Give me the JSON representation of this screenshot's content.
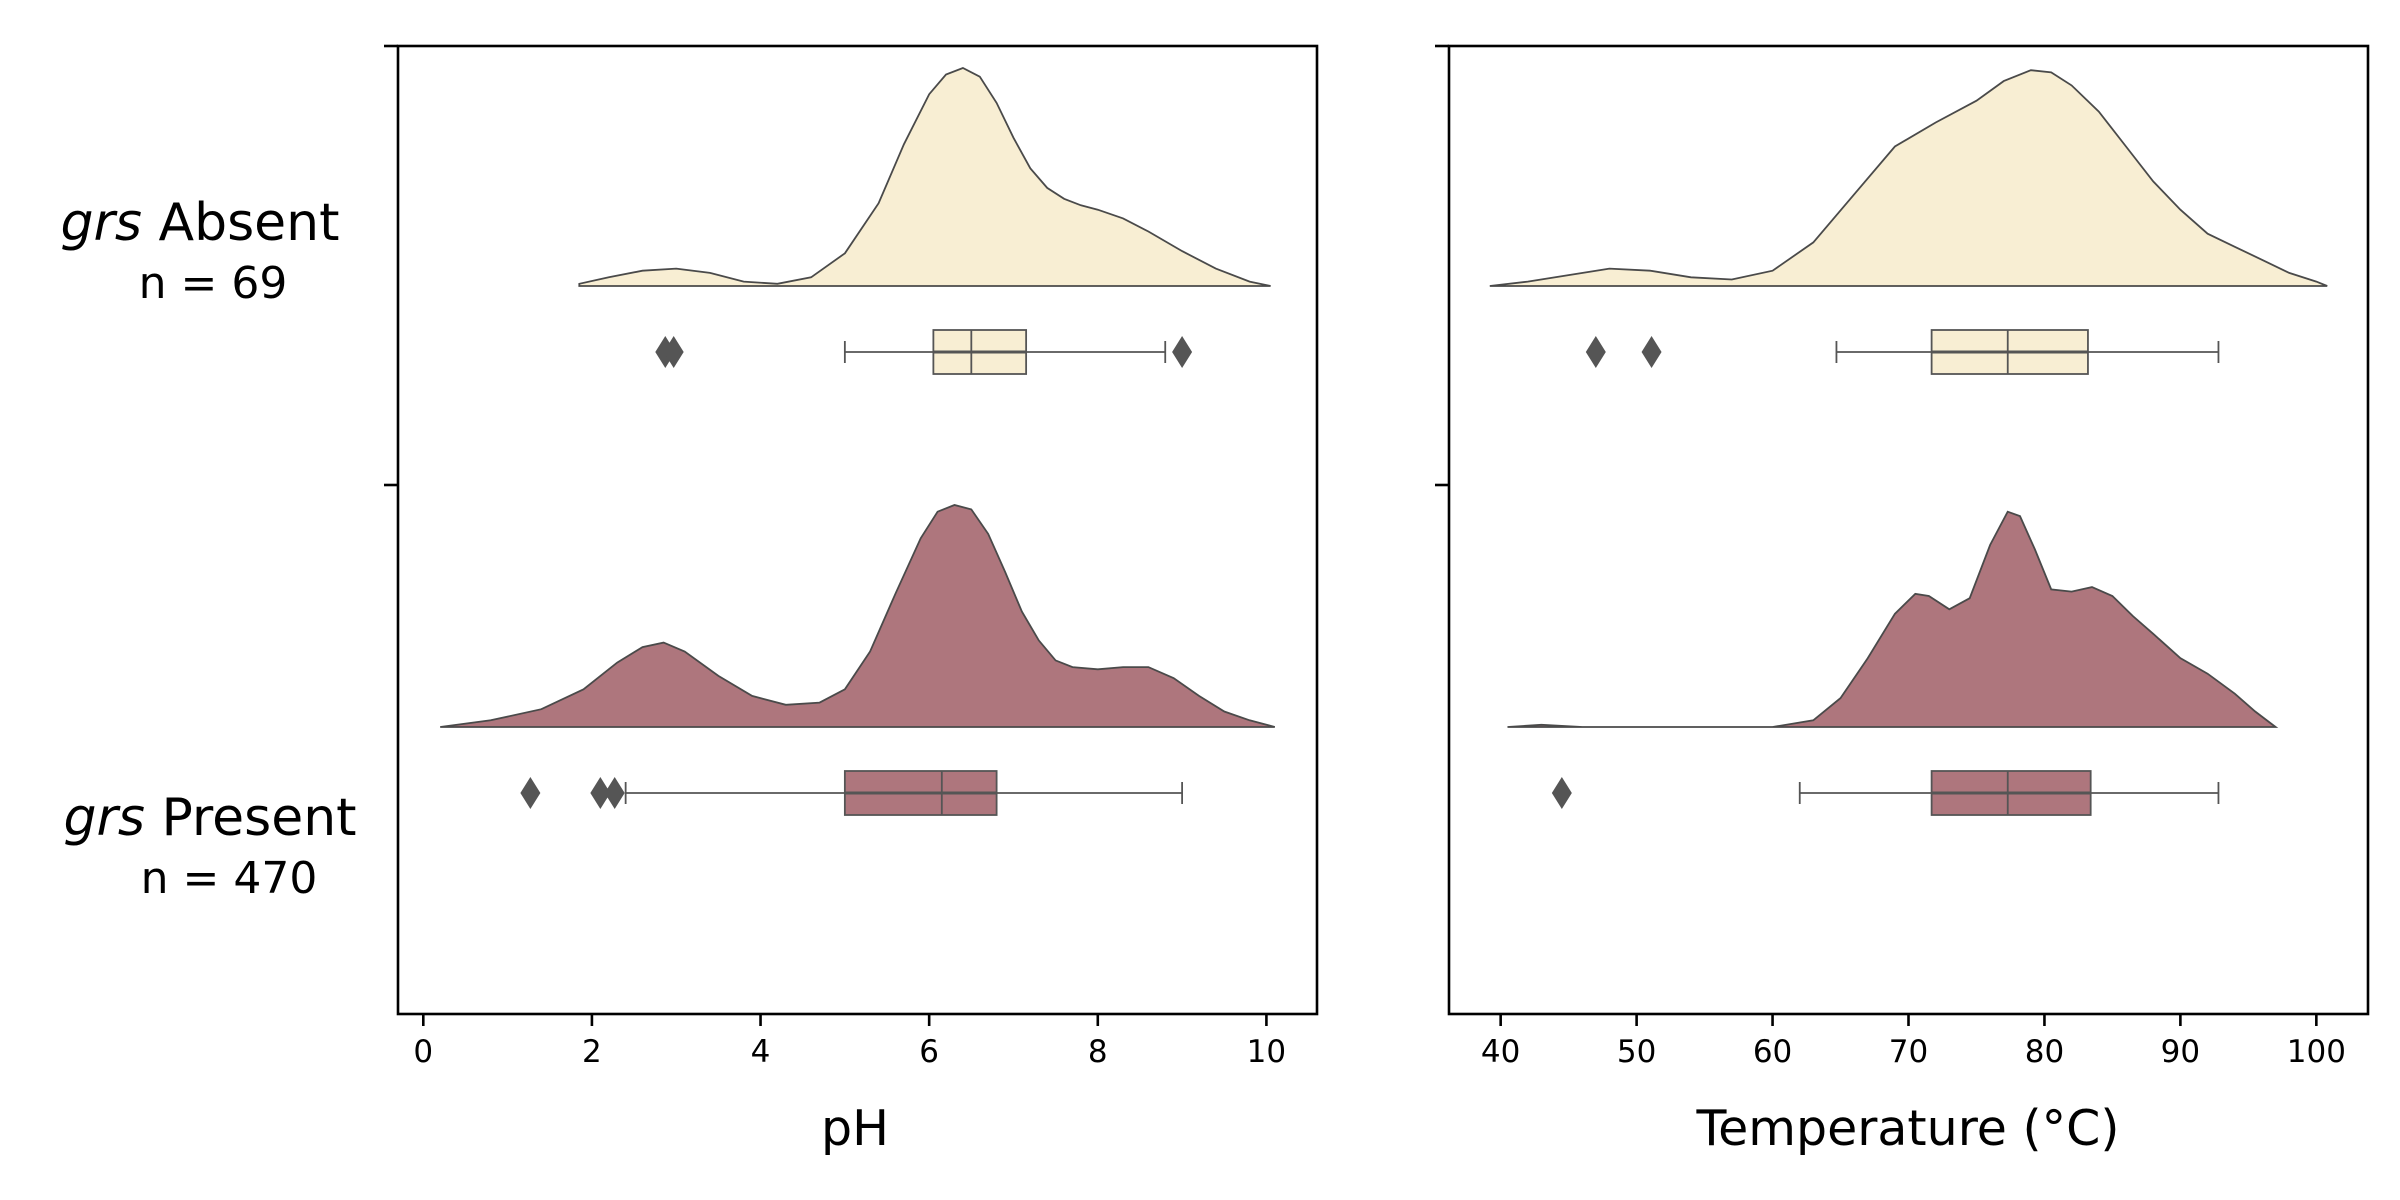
{
  "chart_data": [
    {
      "type": "raincloud",
      "xlabel": "pH",
      "xlim": [
        -0.3,
        10.6
      ],
      "xticks": [
        0,
        2,
        4,
        6,
        8,
        10
      ],
      "xtick_labels": [
        "0",
        "2",
        "4",
        "6",
        "8",
        "10"
      ],
      "groups": [
        {
          "label_italic": "grs",
          "label_rest": " Absent",
          "n_label": "n = 69",
          "color": "#F8EED3",
          "density": [
            [
              1.85,
              0.01
            ],
            [
              2.2,
              0.04
            ],
            [
              2.6,
              0.07
            ],
            [
              3.0,
              0.08
            ],
            [
              3.4,
              0.06
            ],
            [
              3.8,
              0.02
            ],
            [
              4.2,
              0.01
            ],
            [
              4.6,
              0.04
            ],
            [
              5.0,
              0.15
            ],
            [
              5.4,
              0.38
            ],
            [
              5.7,
              0.65
            ],
            [
              6.0,
              0.88
            ],
            [
              6.2,
              0.97
            ],
            [
              6.4,
              1.0
            ],
            [
              6.6,
              0.96
            ],
            [
              6.8,
              0.84
            ],
            [
              7.0,
              0.68
            ],
            [
              7.2,
              0.54
            ],
            [
              7.4,
              0.45
            ],
            [
              7.6,
              0.4
            ],
            [
              7.8,
              0.37
            ],
            [
              8.0,
              0.35
            ],
            [
              8.3,
              0.31
            ],
            [
              8.6,
              0.25
            ],
            [
              9.0,
              0.16
            ],
            [
              9.4,
              0.08
            ],
            [
              9.8,
              0.02
            ],
            [
              10.05,
              0.0
            ]
          ],
          "box": {
            "whisker_low": 5.0,
            "q1": 6.05,
            "median": 6.5,
            "q3": 7.15,
            "whisker_high": 8.8
          },
          "outliers": [
            2.87,
            2.97,
            9.0
          ]
        },
        {
          "label_italic": "grs",
          "label_rest": " Present",
          "n_label": "n = 470",
          "color": "#AE767D",
          "density": [
            [
              0.2,
              0.0
            ],
            [
              0.8,
              0.03
            ],
            [
              1.4,
              0.08
            ],
            [
              1.9,
              0.17
            ],
            [
              2.3,
              0.29
            ],
            [
              2.6,
              0.36
            ],
            [
              2.85,
              0.38
            ],
            [
              3.1,
              0.34
            ],
            [
              3.5,
              0.23
            ],
            [
              3.9,
              0.14
            ],
            [
              4.3,
              0.1
            ],
            [
              4.7,
              0.11
            ],
            [
              5.0,
              0.17
            ],
            [
              5.3,
              0.34
            ],
            [
              5.6,
              0.6
            ],
            [
              5.9,
              0.85
            ],
            [
              6.1,
              0.97
            ],
            [
              6.3,
              1.0
            ],
            [
              6.5,
              0.98
            ],
            [
              6.7,
              0.87
            ],
            [
              6.9,
              0.7
            ],
            [
              7.1,
              0.52
            ],
            [
              7.3,
              0.39
            ],
            [
              7.5,
              0.3
            ],
            [
              7.7,
              0.27
            ],
            [
              8.0,
              0.26
            ],
            [
              8.3,
              0.27
            ],
            [
              8.6,
              0.27
            ],
            [
              8.9,
              0.22
            ],
            [
              9.2,
              0.14
            ],
            [
              9.5,
              0.07
            ],
            [
              9.8,
              0.03
            ],
            [
              10.1,
              0.0
            ]
          ],
          "box": {
            "whisker_low": 2.4,
            "q1": 5.0,
            "median": 6.15,
            "q3": 6.8,
            "whisker_high": 9.0
          },
          "outliers": [
            1.27,
            2.1,
            2.27
          ]
        }
      ]
    },
    {
      "type": "raincloud",
      "xlabel": "Temperature (°C)",
      "xlim": [
        36.2,
        103.8
      ],
      "xticks": [
        40,
        50,
        60,
        70,
        80,
        90,
        100
      ],
      "xtick_labels": [
        "40",
        "50",
        "60",
        "70",
        "80",
        "90",
        "100"
      ],
      "groups": [
        {
          "label_italic": "grs",
          "label_rest": " Absent",
          "n_label": "n = 69",
          "color": "#F8EED3",
          "density": [
            [
              39.2,
              0.0
            ],
            [
              42,
              0.02
            ],
            [
              45,
              0.05
            ],
            [
              48,
              0.08
            ],
            [
              51,
              0.07
            ],
            [
              54,
              0.04
            ],
            [
              57,
              0.03
            ],
            [
              60,
              0.07
            ],
            [
              63,
              0.2
            ],
            [
              66,
              0.42
            ],
            [
              69,
              0.64
            ],
            [
              72,
              0.75
            ],
            [
              75,
              0.85
            ],
            [
              77,
              0.94
            ],
            [
              79,
              0.99
            ],
            [
              80.5,
              0.98
            ],
            [
              82,
              0.92
            ],
            [
              84,
              0.8
            ],
            [
              86,
              0.64
            ],
            [
              88,
              0.48
            ],
            [
              90,
              0.35
            ],
            [
              92,
              0.24
            ],
            [
              94,
              0.18
            ],
            [
              96,
              0.12
            ],
            [
              98,
              0.06
            ],
            [
              100,
              0.02
            ],
            [
              100.8,
              0.0
            ]
          ],
          "box": {
            "whisker_low": 64.7,
            "q1": 71.7,
            "median": 77.3,
            "q3": 83.2,
            "whisker_high": 92.8
          },
          "outliers": [
            47.0,
            51.1
          ]
        },
        {
          "label_italic": "grs",
          "label_rest": " Present",
          "n_label": "n = 470",
          "color": "#AE767D",
          "density": [
            [
              40.5,
              0.0
            ],
            [
              43,
              0.01
            ],
            [
              46,
              0.0
            ],
            [
              50,
              0.0
            ],
            [
              55,
              0.0
            ],
            [
              60,
              0.0
            ],
            [
              63,
              0.03
            ],
            [
              65,
              0.13
            ],
            [
              67,
              0.31
            ],
            [
              69,
              0.51
            ],
            [
              70.5,
              0.6
            ],
            [
              71.5,
              0.59
            ],
            [
              73,
              0.53
            ],
            [
              74.5,
              0.58
            ],
            [
              76,
              0.82
            ],
            [
              77.3,
              0.97
            ],
            [
              78.2,
              0.95
            ],
            [
              79.3,
              0.8
            ],
            [
              80.5,
              0.62
            ],
            [
              82,
              0.61
            ],
            [
              83.5,
              0.63
            ],
            [
              85,
              0.59
            ],
            [
              86.5,
              0.5
            ],
            [
              88,
              0.42
            ],
            [
              90,
              0.31
            ],
            [
              92,
              0.24
            ],
            [
              94,
              0.15
            ],
            [
              95.5,
              0.07
            ],
            [
              97,
              0.0
            ]
          ],
          "box": {
            "whisker_low": 62.0,
            "q1": 71.7,
            "median": 77.3,
            "q3": 83.4,
            "whisker_high": 92.8
          },
          "outliers": [
            44.5
          ]
        }
      ]
    }
  ]
}
